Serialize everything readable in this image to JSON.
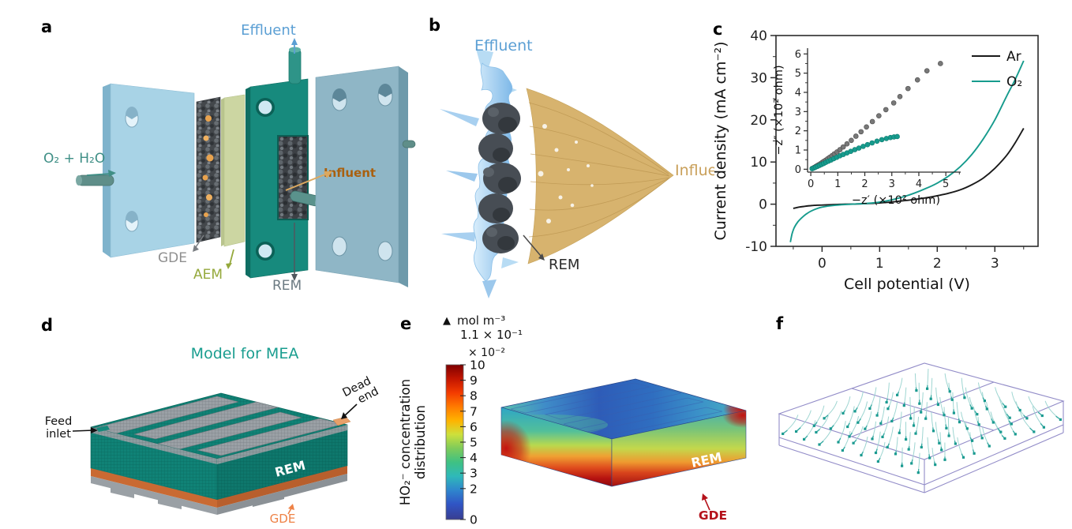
{
  "panels": {
    "a": {
      "label": "a",
      "effluent": "Effluent",
      "feed_gas": "O₂ + H₂O",
      "gde": "GDE",
      "aem": "AEM",
      "rem": "REM",
      "influent": "Influent"
    },
    "b": {
      "label": "b",
      "effluent": "Effluent",
      "influent": "Influent",
      "rem": "REM"
    },
    "c": {
      "label": "c"
    },
    "d": {
      "label": "d",
      "title": "Model for MEA",
      "feed_inlet_line1": "Feed",
      "feed_inlet_line2": "inlet",
      "dead_end_line1": "Dead",
      "dead_end_line2": "end",
      "rem": "REM",
      "gde": "GDE"
    },
    "e": {
      "label": "e",
      "unit_marker": "▲",
      "unit": "mol m⁻³",
      "max_value": "1.1 × 10⁻¹",
      "multiplier": "× 10⁻²",
      "colorbar_axis_line1": "HO₂⁻ concentration",
      "colorbar_axis_line2": "distribution",
      "colorbar_ticks": [
        "10",
        "9",
        "8",
        "7",
        "6",
        "5",
        "4",
        "3",
        "2",
        "0"
      ],
      "colorbar_range": [
        0,
        10
      ],
      "rem": "REM",
      "gde": "GDE"
    },
    "f": {
      "label": "f"
    }
  },
  "colors": {
    "teal_accent": "#169b8d",
    "effluent_blue": "#5b9fd4",
    "influent_dark_orange": "#a9600f",
    "influent_tan": "#c9a05a",
    "gde_gray_label": "#8f8f8f",
    "aem_green_label": "#95a93c",
    "rem_gray_label": "#6b7a82",
    "model_title_teal": "#199d8f",
    "gde_orange_label": "#ee8246",
    "gde_dark_red_label": "#b5121b",
    "wireframe_purple": "#928cc8",
    "streamline_teal": "#1a9a90"
  },
  "chart_data": [
    {
      "id": "lsv_main",
      "type": "line",
      "title": "",
      "xlabel": "Cell potential (V)",
      "ylabel": "Current density (mA cm⁻²)",
      "xlim": [
        -0.8,
        3.75
      ],
      "ylim": [
        -10,
        40
      ],
      "xticks": [
        0,
        1,
        2,
        3
      ],
      "yticks": [
        -10,
        0,
        10,
        20,
        30,
        40
      ],
      "x_minor_step": 0.5,
      "y_minor_step": 5,
      "grid": false,
      "legend_position": "top-right-inside",
      "series": [
        {
          "name": "Ar",
          "color": "#1a1a1a",
          "x": [
            -0.5,
            -0.4,
            -0.3,
            -0.2,
            -0.1,
            0,
            0.2,
            0.4,
            0.6,
            0.8,
            1,
            1.2,
            1.4,
            1.6,
            1.8,
            2,
            2.2,
            2.4,
            2.6,
            2.8,
            3,
            3.2,
            3.35,
            3.5
          ],
          "y": [
            -1,
            -0.7,
            -0.5,
            -0.35,
            -0.25,
            -0.2,
            -0.1,
            0,
            0.05,
            0.15,
            0.3,
            0.5,
            0.8,
            1.1,
            1.5,
            2,
            2.6,
            3.4,
            4.6,
            6.2,
            8.5,
            11.5,
            14.5,
            18
          ]
        },
        {
          "name": "O₂",
          "color": "#169b8d",
          "x": [
            -0.55,
            -0.52,
            -0.48,
            -0.42,
            -0.35,
            -0.28,
            -0.2,
            -0.1,
            0,
            0.2,
            0.4,
            0.6,
            0.8,
            1,
            1.2,
            1.4,
            1.6,
            1.8,
            2,
            2.2,
            2.4,
            2.6,
            2.8,
            3,
            3.2,
            3.35,
            3.5
          ],
          "y": [
            -9,
            -7,
            -5.5,
            -4.2,
            -3.2,
            -2.4,
            -1.7,
            -1.1,
            -0.7,
            -0.3,
            -0.1,
            0.05,
            0.2,
            0.5,
            1,
            1.7,
            2.6,
            3.7,
            5,
            6.7,
            8.9,
            11.8,
            15.5,
            20,
            25.5,
            29.5,
            34
          ]
        }
      ]
    },
    {
      "id": "eis_inset",
      "type": "scatter",
      "title": "",
      "xlabel": "−z′ (×10² ohm)",
      "ylabel": "−z″ (×10² ohm)",
      "xlim": [
        -0.12,
        5.55
      ],
      "ylim": [
        -0.15,
        6.3
      ],
      "xticks": [
        0,
        1,
        2,
        3,
        4,
        5
      ],
      "yticks": [
        0,
        1,
        2,
        3,
        4,
        5,
        6
      ],
      "x_minor_step": 0.5,
      "y_minor_step": 0.5,
      "grid": false,
      "series": [
        {
          "name": "Ar",
          "color": "#787878",
          "edge": "#4a4a4a",
          "points": [
            [
              0.05,
              0.04
            ],
            [
              0.12,
              0.09
            ],
            [
              0.18,
              0.14
            ],
            [
              0.24,
              0.19
            ],
            [
              0.3,
              0.24
            ],
            [
              0.36,
              0.29
            ],
            [
              0.42,
              0.35
            ],
            [
              0.48,
              0.41
            ],
            [
              0.55,
              0.47
            ],
            [
              0.62,
              0.54
            ],
            [
              0.7,
              0.62
            ],
            [
              0.78,
              0.7
            ],
            [
              0.87,
              0.8
            ],
            [
              0.97,
              0.9
            ],
            [
              1.08,
              1.02
            ],
            [
              1.2,
              1.16
            ],
            [
              1.34,
              1.32
            ],
            [
              1.5,
              1.5
            ],
            [
              1.67,
              1.72
            ],
            [
              1.86,
              1.95
            ],
            [
              2.06,
              2.2
            ],
            [
              2.28,
              2.48
            ],
            [
              2.52,
              2.78
            ],
            [
              2.78,
              3.1
            ],
            [
              3.07,
              3.45
            ],
            [
              3.3,
              3.78
            ],
            [
              3.6,
              4.2
            ],
            [
              3.95,
              4.65
            ],
            [
              4.3,
              5.12
            ],
            [
              4.8,
              5.5
            ]
          ]
        },
        {
          "name": "O₂",
          "color": "#169b8d",
          "edge": "#0e7a6e",
          "points": [
            [
              0.05,
              0.03
            ],
            [
              0.12,
              0.07
            ],
            [
              0.18,
              0.11
            ],
            [
              0.25,
              0.15
            ],
            [
              0.32,
              0.2
            ],
            [
              0.4,
              0.25
            ],
            [
              0.48,
              0.3
            ],
            [
              0.56,
              0.36
            ],
            [
              0.65,
              0.42
            ],
            [
              0.75,
              0.48
            ],
            [
              0.85,
              0.55
            ],
            [
              0.96,
              0.62
            ],
            [
              1.08,
              0.7
            ],
            [
              1.2,
              0.77
            ],
            [
              1.34,
              0.85
            ],
            [
              1.48,
              0.93
            ],
            [
              1.63,
              1.02
            ],
            [
              1.78,
              1.1
            ],
            [
              1.94,
              1.19
            ],
            [
              2.1,
              1.28
            ],
            [
              2.27,
              1.37
            ],
            [
              2.45,
              1.46
            ],
            [
              2.63,
              1.54
            ],
            [
              2.8,
              1.6
            ],
            [
              2.95,
              1.65
            ],
            [
              3.08,
              1.68
            ],
            [
              3.2,
              1.7
            ]
          ]
        }
      ]
    }
  ]
}
